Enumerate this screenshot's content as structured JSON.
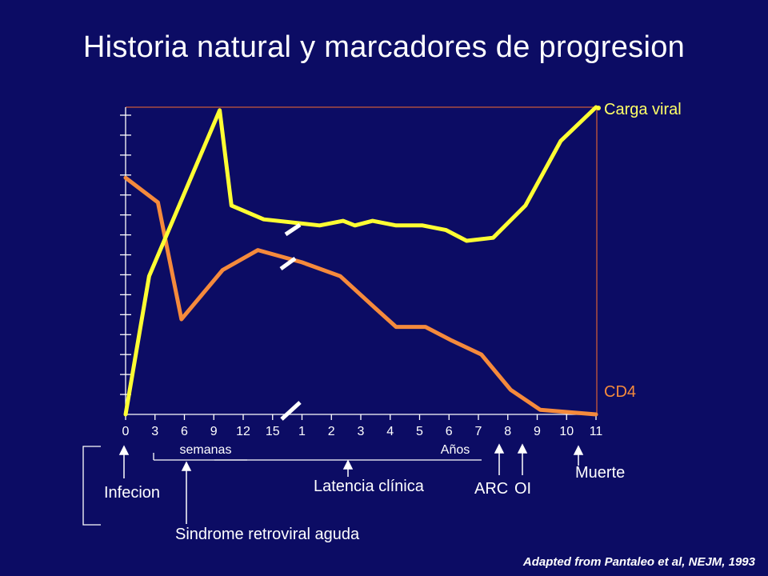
{
  "title": "Historia natural y marcadores de progresion",
  "chart_data": {
    "type": "line",
    "x_ticks": [
      "0",
      "3",
      "6",
      "9",
      "12",
      "15",
      "1",
      "2",
      "3",
      "4",
      "5",
      "6",
      "7",
      "8",
      "9",
      "10",
      "11"
    ],
    "x_units": {
      "weeks": "semanas",
      "years": "Años"
    },
    "y_range": [
      0,
      100
    ],
    "y_ticks_count": 15,
    "axis_break": true,
    "series": [
      {
        "name": "Carga viral",
        "color": "#ffff33",
        "values": [
          [
            0,
            0
          ],
          [
            0.8,
            45
          ],
          [
            3.2,
            99
          ],
          [
            3.6,
            68
          ],
          [
            4.7,
            63.5
          ],
          [
            6.6,
            61.5
          ],
          [
            7.4,
            63
          ],
          [
            7.8,
            61.5
          ],
          [
            8.4,
            63
          ],
          [
            9.2,
            61.5
          ],
          [
            10.1,
            61.5
          ],
          [
            10.9,
            60
          ],
          [
            11.6,
            56.5
          ],
          [
            12.5,
            57.5
          ],
          [
            13.6,
            68
          ],
          [
            14.8,
            89
          ],
          [
            16.0,
            100
          ]
        ]
      },
      {
        "name": "CD4",
        "color": "#f58a3c",
        "values": [
          [
            0,
            77
          ],
          [
            1.1,
            69
          ],
          [
            1.9,
            31
          ],
          [
            3.3,
            47
          ],
          [
            4.5,
            53.5
          ],
          [
            6.0,
            49.5
          ],
          [
            7.3,
            45
          ],
          [
            8.5,
            34.5
          ],
          [
            9.2,
            28.5
          ],
          [
            10.2,
            28.5
          ],
          [
            11.1,
            24
          ],
          [
            12.1,
            19.5
          ],
          [
            13.1,
            8
          ],
          [
            14.1,
            1.5
          ],
          [
            16.0,
            0
          ]
        ]
      }
    ],
    "annotations": [
      {
        "label": "Infecion",
        "x": 0
      },
      {
        "label": "Sindrome retroviral aguda",
        "x": 2
      },
      {
        "label": "Latencia clínica",
        "x": 7.5
      },
      {
        "label": "ARC",
        "x": 13
      },
      {
        "label": "OI",
        "x": 14
      },
      {
        "label": "Muerte",
        "x": 15.5
      }
    ]
  },
  "source": "Adapted from Pantaleo et al, NEJM, 1993"
}
